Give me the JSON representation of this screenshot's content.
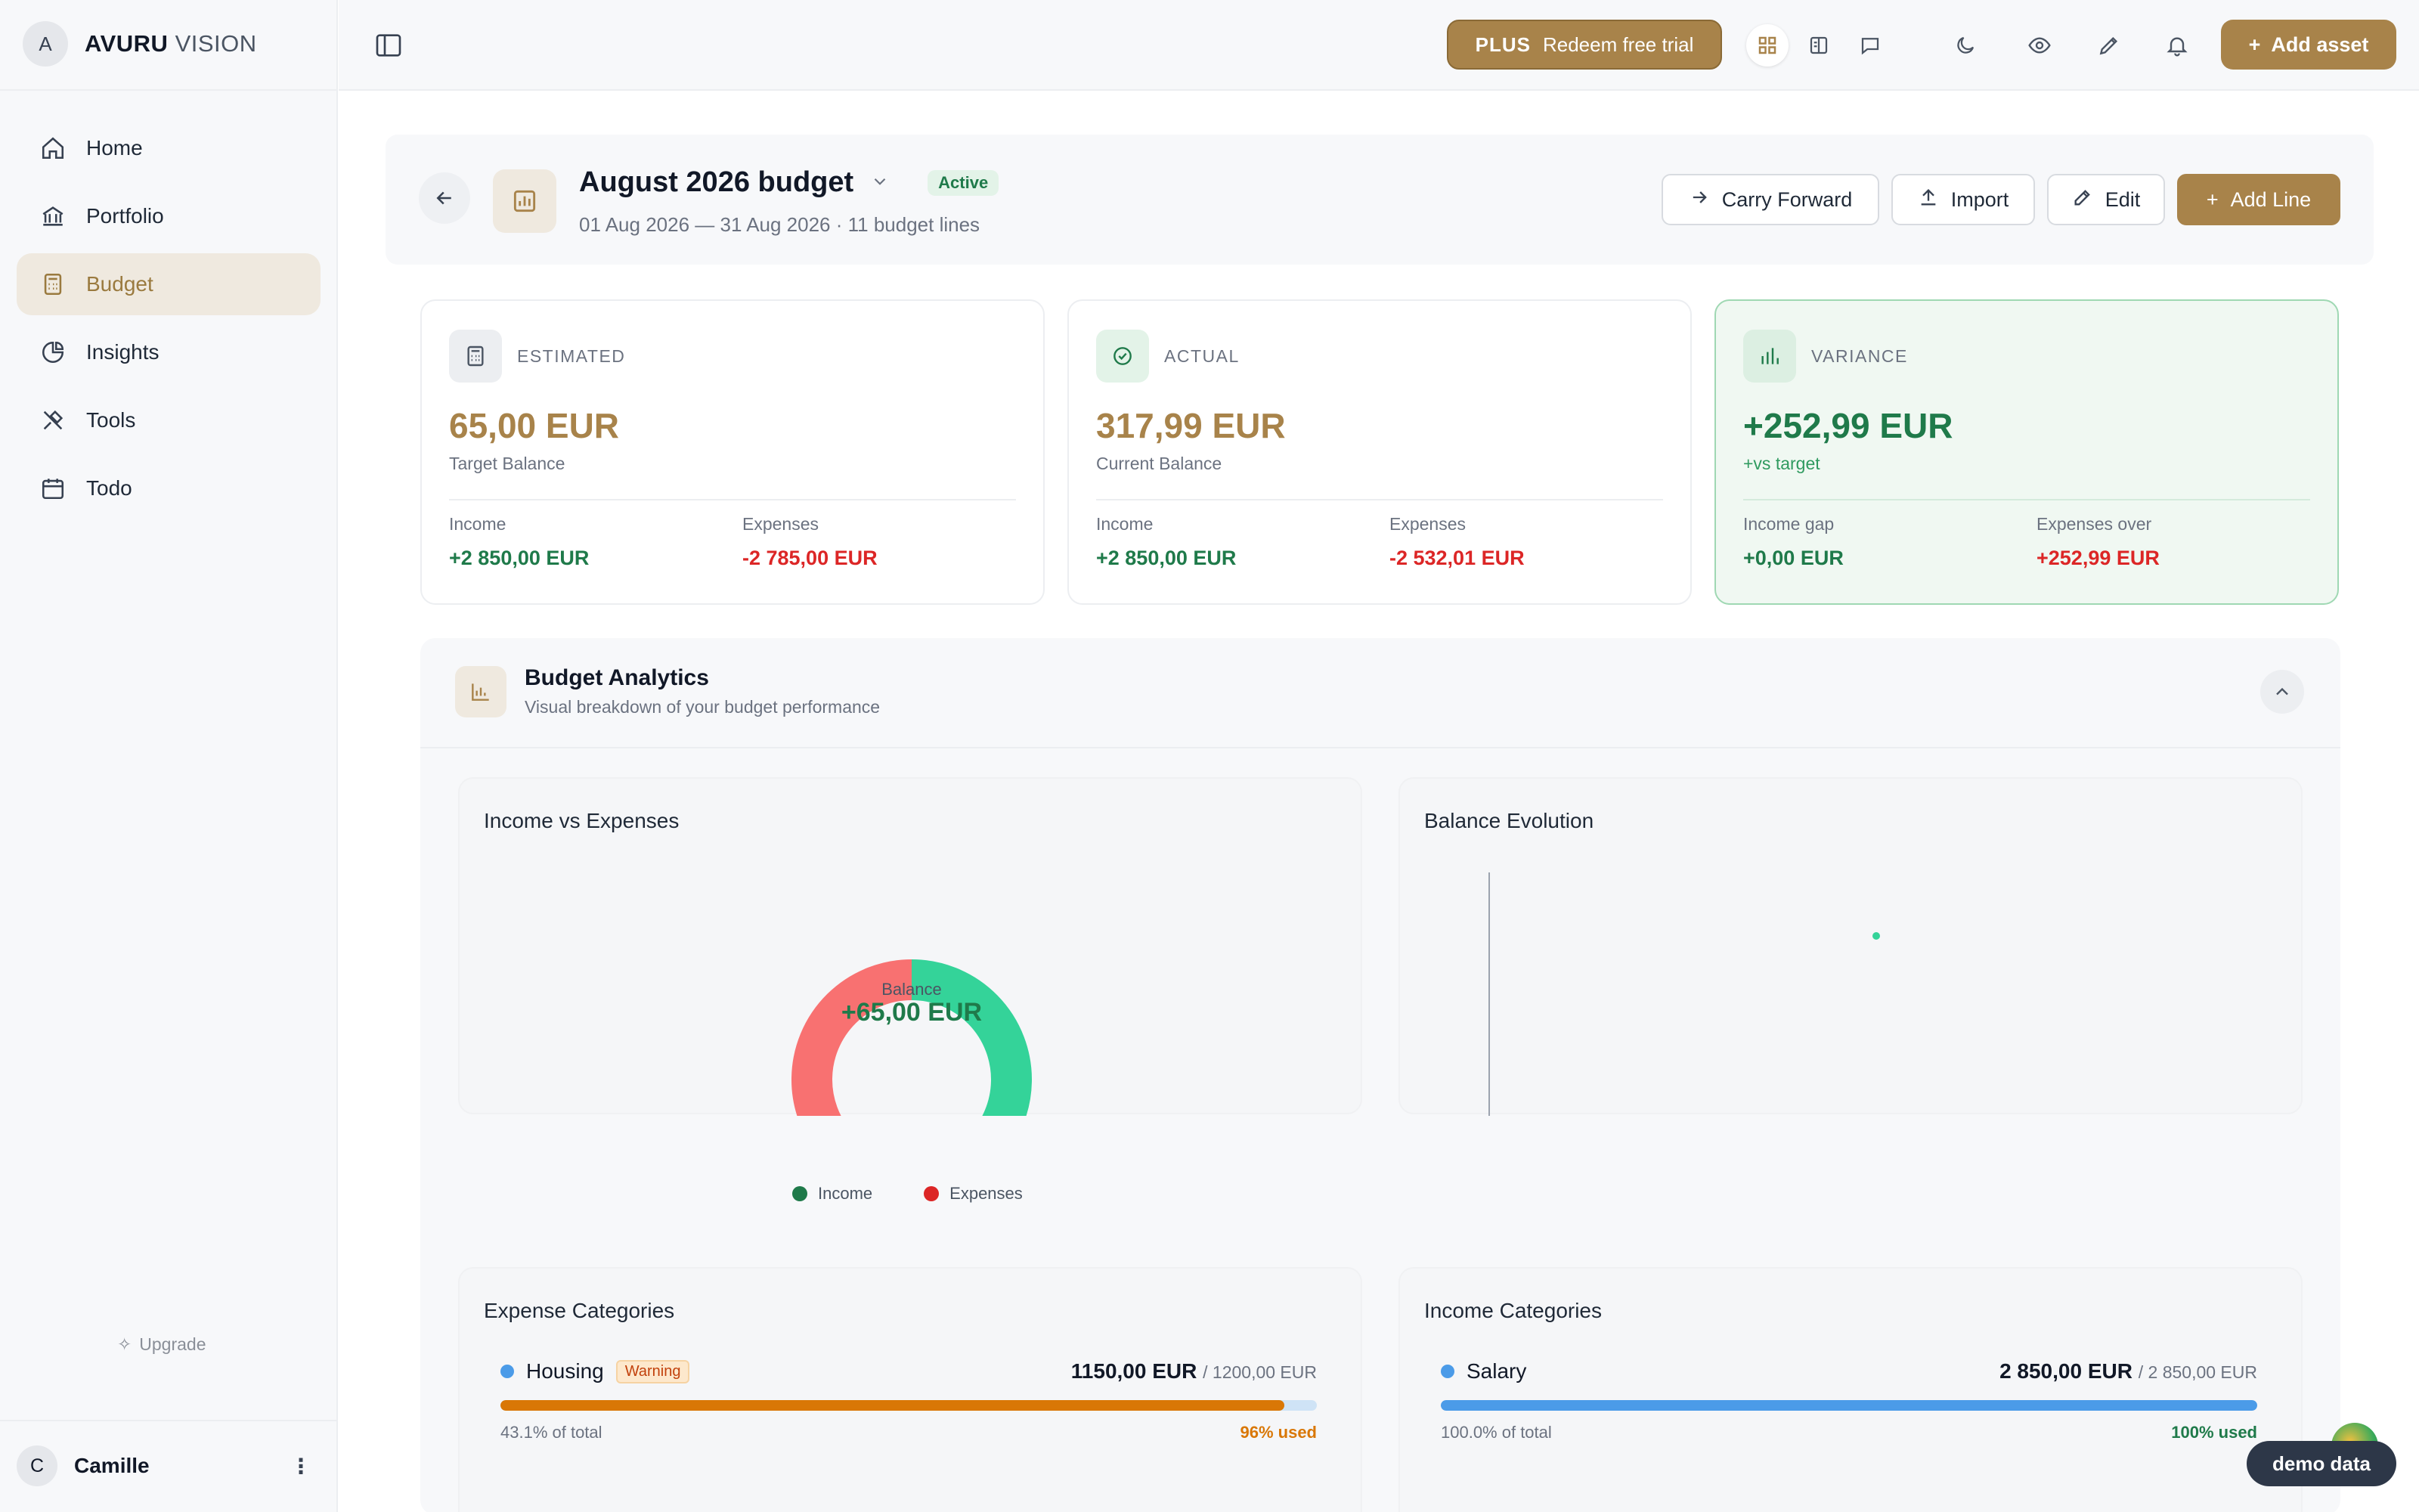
{
  "brand": {
    "initial": "A",
    "name_bold": "AVURU",
    "name_light": "VISION"
  },
  "sidebar": {
    "items": [
      {
        "label": "Home",
        "icon": "home-icon"
      },
      {
        "label": "Portfolio",
        "icon": "bank-icon"
      },
      {
        "label": "Budget",
        "icon": "calculator-icon",
        "active": true
      },
      {
        "label": "Insights",
        "icon": "pie-chart-icon"
      },
      {
        "label": "Tools",
        "icon": "tools-icon"
      },
      {
        "label": "Todo",
        "icon": "calendar-icon"
      }
    ],
    "upgrade_label": "Upgrade",
    "user": {
      "initial": "C",
      "name": "Camille"
    }
  },
  "topbar": {
    "plus_tag": "PLUS",
    "plus_label": "Redeem free trial",
    "add_asset_label": "Add asset"
  },
  "header": {
    "title": "August 2026 budget",
    "status": "Active",
    "subtitle": "01 Aug 2026 — 31 Aug 2026 · 11 budget lines",
    "buttons": {
      "carry": "Carry Forward",
      "import": "Import",
      "edit": "Edit",
      "add_line": "Add Line"
    }
  },
  "kpis": {
    "estimated": {
      "label": "ESTIMATED",
      "value": "65,00 EUR",
      "caption": "Target Balance",
      "left_label": "Income",
      "left_value": "+2 850,00 EUR",
      "right_label": "Expenses",
      "right_value": "-2 785,00 EUR"
    },
    "actual": {
      "label": "ACTUAL",
      "value": "317,99 EUR",
      "caption": "Current Balance",
      "left_label": "Income",
      "left_value": "+2 850,00 EUR",
      "right_label": "Expenses",
      "right_value": "-2 532,01 EUR"
    },
    "variance": {
      "label": "VARIANCE",
      "value": "+252,99 EUR",
      "caption": "+vs target",
      "left_label": "Income gap",
      "left_value": "+0,00 EUR",
      "right_label": "Expenses over",
      "right_value": "+252,99 EUR"
    }
  },
  "analytics": {
    "title": "Budget Analytics",
    "subtitle": "Visual breakdown of your budget performance",
    "income_vs_expenses": {
      "title": "Income vs Expenses",
      "center_label": "Balance",
      "center_value": "+65,00 EUR",
      "legend_income": "Income",
      "legend_expenses": "Expenses"
    },
    "balance_evolution": {
      "title": "Balance Evolution"
    },
    "expense_categories": {
      "title": "Expense Categories",
      "rows": [
        {
          "name": "Housing",
          "badge": "Warning",
          "amount": "1150,00 EUR",
          "budget": "/ 1200,00 EUR",
          "share": "43.1% of total",
          "used": "96% used",
          "fill": 0.96,
          "color": "#d97706"
        }
      ]
    },
    "income_categories": {
      "title": "Income Categories",
      "rows": [
        {
          "name": "Salary",
          "amount": "2 850,00 EUR",
          "budget": "/ 2 850,00 EUR",
          "share": "100.0% of total",
          "used": "100% used",
          "fill": 1.0,
          "color": "#4b9be8"
        }
      ]
    }
  },
  "chart_data": {
    "type": "pie",
    "categories": [
      "Income",
      "Expenses"
    ],
    "values": [
      2850,
      2785
    ],
    "title": "Income vs Expenses",
    "colors": {
      "income": "#34d399",
      "expenses": "#f87171"
    }
  },
  "demo_label": "demo data"
}
